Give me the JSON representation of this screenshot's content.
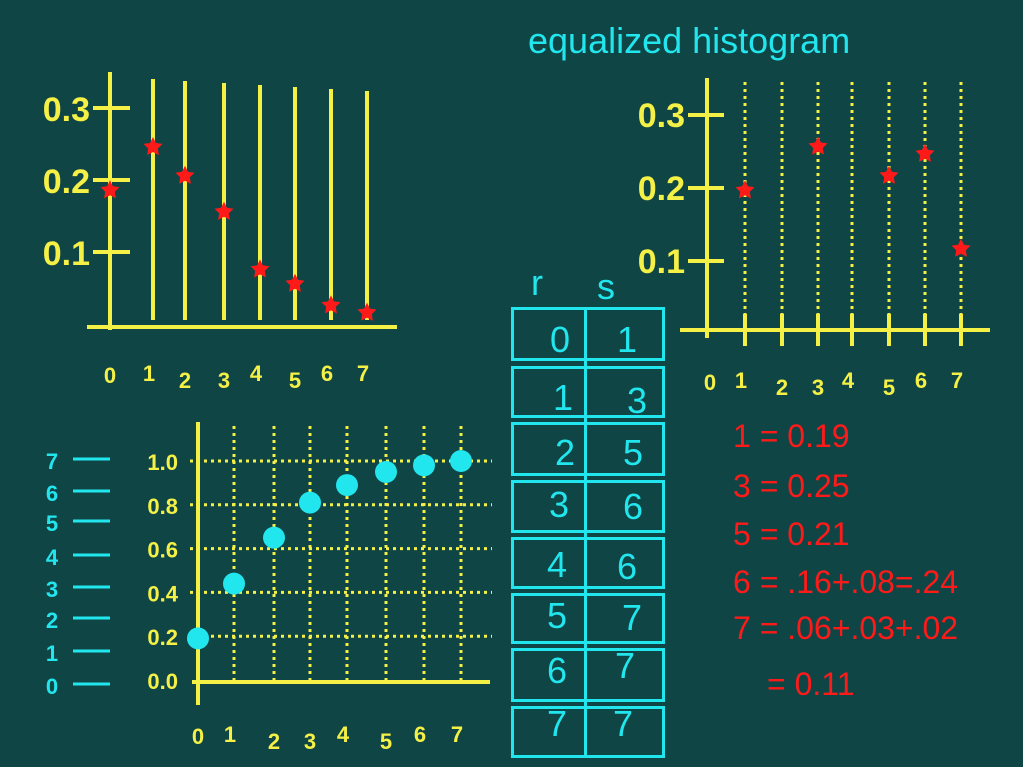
{
  "title": "equalized histogram",
  "colors": {
    "background": "#0f4545",
    "axis": "#f4f046",
    "cyan": "#22e6ee",
    "red": "#ff1a1a"
  },
  "chart_data": [
    {
      "type": "scatter",
      "name": "original-histogram",
      "x": [
        "0",
        "1",
        "2",
        "3",
        "4",
        "5",
        "6",
        "7"
      ],
      "values": [
        0.19,
        0.25,
        0.21,
        0.16,
        0.08,
        0.06,
        0.03,
        0.02
      ],
      "yticks": [
        "0.3",
        "0.2",
        "0.1"
      ],
      "ytick_values": [
        0.3,
        0.2,
        0.1
      ]
    },
    {
      "type": "scatter",
      "name": "equalized-histogram",
      "x": [
        "0",
        "1",
        "2",
        "3",
        "4",
        "5",
        "6",
        "7"
      ],
      "points": [
        {
          "x": 1,
          "y": 0.19
        },
        {
          "x": 3,
          "y": 0.25
        },
        {
          "x": 5,
          "y": 0.21
        },
        {
          "x": 6,
          "y": 0.24
        },
        {
          "x": 7,
          "y": 0.11
        }
      ],
      "yticks": [
        "0.3",
        "0.2",
        "0.1"
      ],
      "ytick_values": [
        0.3,
        0.2,
        0.1
      ]
    },
    {
      "type": "scatter",
      "name": "transformation-function",
      "x": [
        "0",
        "1",
        "2",
        "3",
        "4",
        "5",
        "6",
        "7"
      ],
      "values": [
        0.19,
        0.44,
        0.65,
        0.81,
        0.89,
        0.95,
        0.98,
        1.0
      ],
      "yticks": [
        "1.0",
        "0.8",
        "0.6",
        "0.4",
        "0.2",
        "0.0"
      ],
      "ytick_values": [
        1.0,
        0.8,
        0.6,
        0.4,
        0.2,
        0.0
      ],
      "left_levels": [
        "7",
        "6",
        "5",
        "4",
        "3",
        "2",
        "1",
        "0"
      ]
    }
  ],
  "table": {
    "headers": [
      "r",
      "s"
    ],
    "rows": [
      [
        "0",
        "1"
      ],
      [
        "1",
        "3"
      ],
      [
        "2",
        "5"
      ],
      [
        "3",
        "6"
      ],
      [
        "4",
        "6"
      ],
      [
        "5",
        "7"
      ],
      [
        "6",
        "7"
      ],
      [
        "7",
        "7"
      ]
    ]
  },
  "mapping": [
    "1 = 0.19",
    "3 = 0.25",
    "5 = 0.21",
    "6 = .16+.08=.24",
    "7 = .06+.03+.02",
    "= 0.11"
  ]
}
